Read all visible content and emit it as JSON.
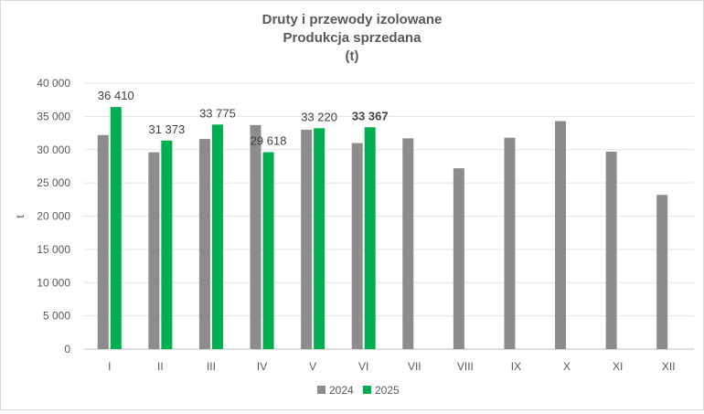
{
  "chart_data": {
    "type": "bar",
    "title": "Druty i przewody izolowane",
    "subtitle": "Produkcja sprzedana",
    "unit_line": "(t)",
    "ylabel": "t",
    "ylim": [
      0,
      40000
    ],
    "yticks": [
      0,
      5000,
      10000,
      15000,
      20000,
      25000,
      30000,
      35000,
      40000
    ],
    "ytick_labels": [
      "0",
      "5 000",
      "10 000",
      "15 000",
      "20 000",
      "25 000",
      "30 000",
      "35 000",
      "40 000"
    ],
    "grid": true,
    "legend_position": "bottom",
    "categories": [
      "I",
      "II",
      "III",
      "IV",
      "V",
      "VI",
      "VII",
      "VIII",
      "IX",
      "X",
      "XI",
      "XII"
    ],
    "series": [
      {
        "name": "2024",
        "color": "#8c8c8c",
        "values": [
          32200,
          29600,
          31600,
          33700,
          33000,
          31000,
          31700,
          27200,
          31800,
          34300,
          29700,
          23200
        ]
      },
      {
        "name": "2025",
        "color": "#00b050",
        "values": [
          36410,
          31373,
          33775,
          29618,
          33220,
          33367,
          null,
          null,
          null,
          null,
          null,
          null
        ],
        "data_labels": [
          "36 410",
          "31 373",
          "33 775",
          "29 618",
          "33 220",
          "33 367",
          null,
          null,
          null,
          null,
          null,
          null
        ],
        "bold_label_index": 5
      }
    ]
  }
}
